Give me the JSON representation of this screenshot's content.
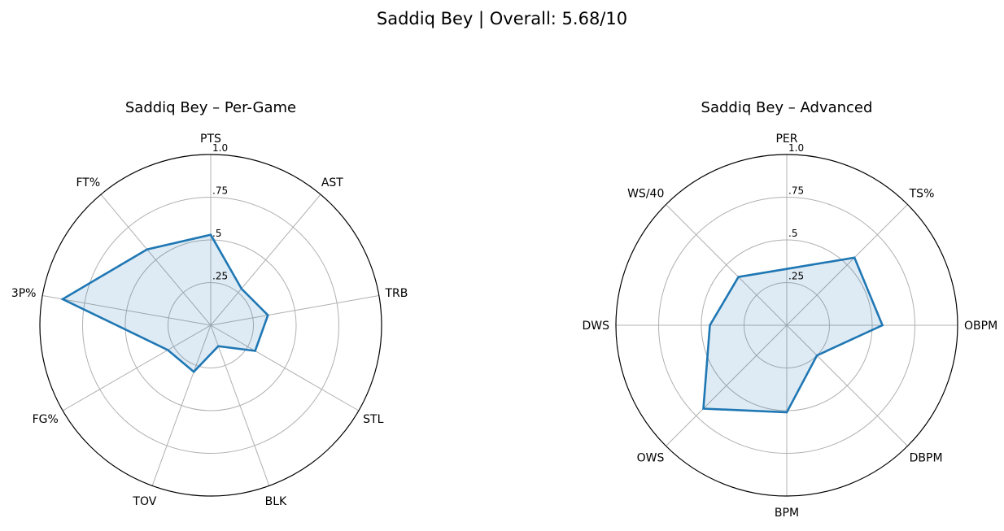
{
  "suptitle": "Saddiq Bey | Overall: 5.68/10",
  "colors": {
    "line": "#1f77b4",
    "fill": "#1f77b4",
    "grid": "#b0b0b0",
    "spine": "#000000"
  },
  "chart_data": [
    {
      "type": "radar",
      "title": "Saddiq Bey – Per-Game",
      "axes": [
        "PTS",
        "AST",
        "TRB",
        "STL",
        "BLK",
        "TOV",
        "FG%",
        "3P%",
        "FT%"
      ],
      "values": [
        0.53,
        0.28,
        0.34,
        0.3,
        0.13,
        0.29,
        0.29,
        0.88,
        0.58
      ],
      "rlim": [
        0,
        1
      ],
      "rticks": [
        0.25,
        0.5,
        0.75,
        1.0
      ],
      "rtick_labels": [
        ".25",
        ".5",
        ".75",
        "1.0"
      ],
      "grid": true
    },
    {
      "type": "radar",
      "title": "Saddiq Bey – Advanced",
      "axes": [
        "PER",
        "TS%",
        "OBPM",
        "DBPM",
        "BPM",
        "OWS",
        "DWS",
        "WS/40"
      ],
      "values": [
        0.33,
        0.56,
        0.56,
        0.25,
        0.51,
        0.69,
        0.45,
        0.4
      ],
      "rlim": [
        0,
        1
      ],
      "rticks": [
        0.25,
        0.5,
        0.75,
        1.0
      ],
      "rtick_labels": [
        ".25",
        ".5",
        ".75",
        "1.0"
      ],
      "grid": true
    }
  ]
}
